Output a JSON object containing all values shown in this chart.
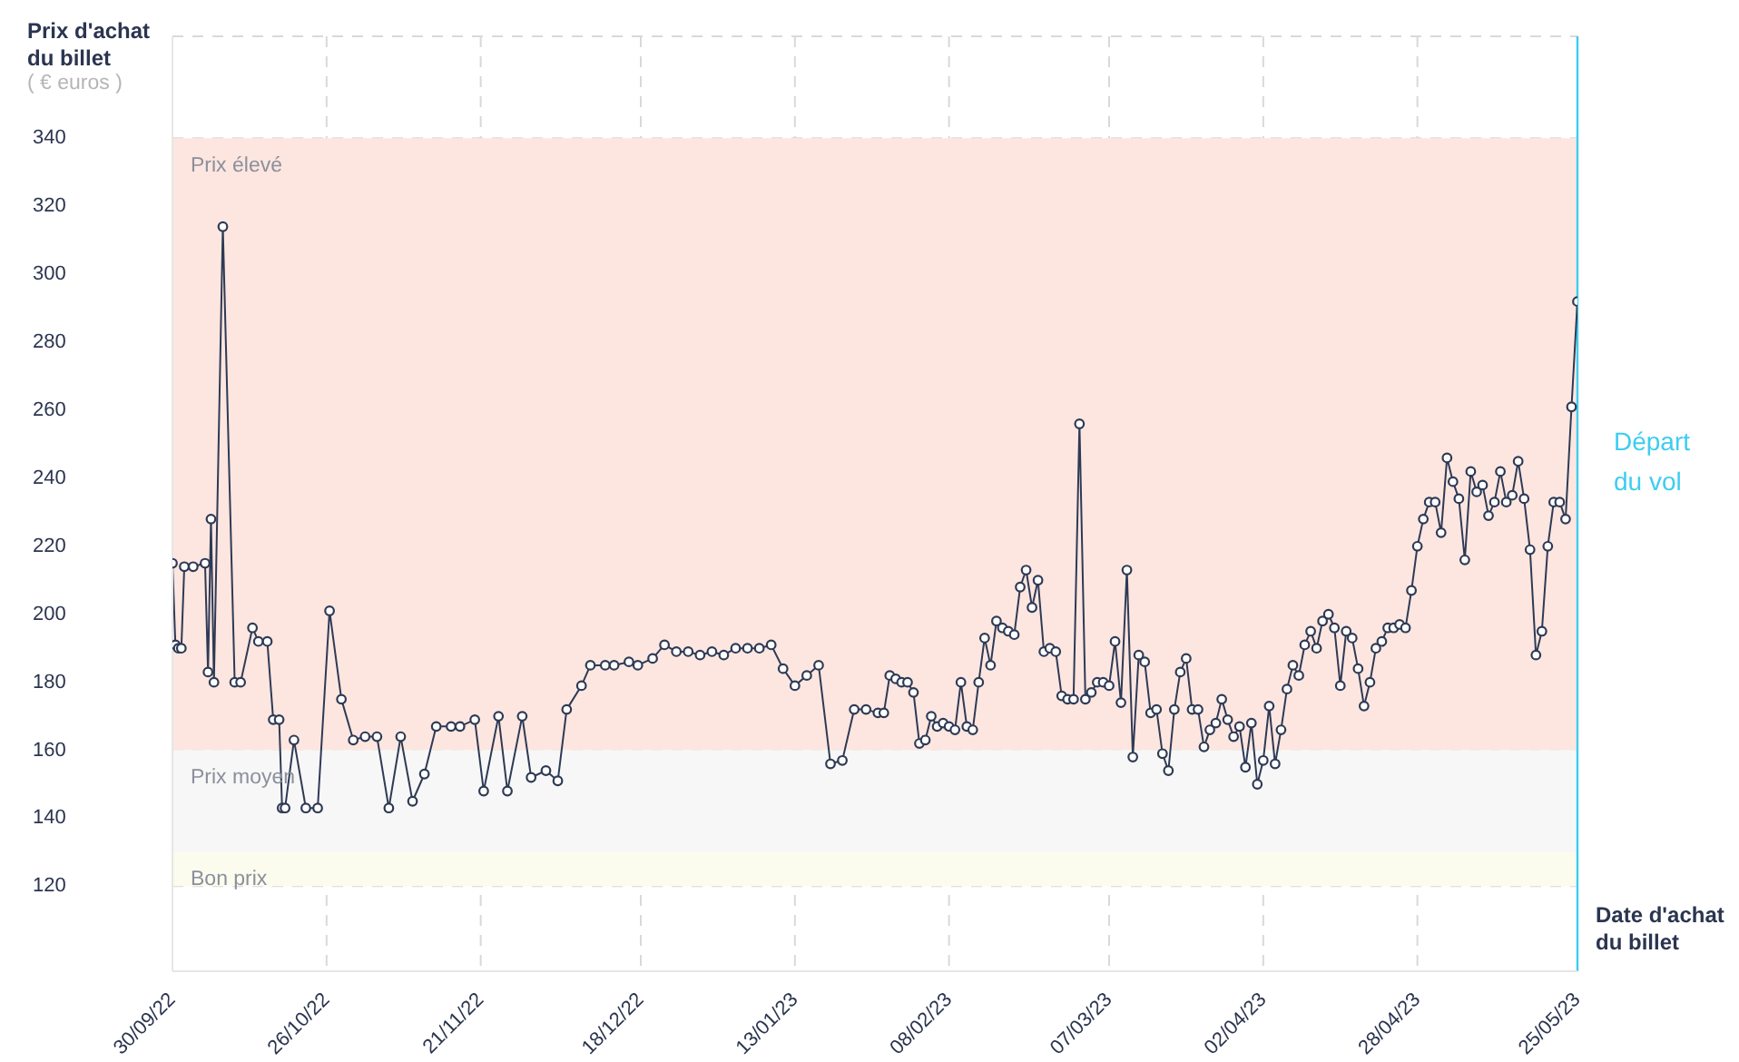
{
  "chart_data": {
    "type": "line",
    "ylabel": "Prix d'achat du billet",
    "xlabel": "Date d'achat du billet",
    "annotations": [
      "( € euros )"
    ],
    "x": [
      "2022-09-30",
      "2022-09-30T12:00",
      "2022-10-01",
      "2022-10-01T12:00",
      "2022-10-02",
      "2022-10-03T12:00",
      "2022-10-05T12:00",
      "2022-10-06",
      "2022-10-06T12:00",
      "2022-10-07",
      "2022-10-08T12:00",
      "2022-10-10T12:00",
      "2022-10-11T12:00",
      "2022-10-13T12:00",
      "2022-10-14T12:00",
      "2022-10-16",
      "2022-10-17",
      "2022-10-18",
      "2022-10-18T12:00",
      "2022-10-19",
      "2022-10-20T12:00",
      "2022-10-22T12:00",
      "2022-10-24T12:00",
      "2022-10-26T12:00",
      "2022-10-28T12:00",
      "2022-10-30T12:00",
      "2022-11-01T12:00",
      "2022-11-03T12:00",
      "2022-11-05T12:00",
      "2022-11-07T12:00",
      "2022-11-09T12:00",
      "2022-11-11T12:00",
      "2022-11-13T12:00",
      "2022-11-16",
      "2022-11-17T12:00",
      "2022-11-20",
      "2022-11-21T12:00",
      "2022-11-24",
      "2022-11-25T12:00",
      "2022-11-28",
      "2022-11-29T12:00",
      "2022-12-02",
      "2022-12-04",
      "2022-12-05T12:00",
      "2022-12-08",
      "2022-12-09T12:00",
      "2022-12-12",
      "2022-12-13T12:00",
      "2022-12-16",
      "2022-12-17T12:00",
      "2022-12-20",
      "2022-12-22",
      "2022-12-24",
      "2022-12-26",
      "2022-12-28",
      "2022-12-30",
      "2023-01-01",
      "2023-01-03",
      "2023-01-05",
      "2023-01-07",
      "2023-01-09",
      "2023-01-11",
      "2023-01-13",
      "2023-01-15",
      "2023-01-17",
      "2023-01-19",
      "2023-01-21",
      "2023-01-23",
      "2023-01-25",
      "2023-01-27",
      "2023-01-28",
      "2023-01-29",
      "2023-01-30",
      "2023-01-31",
      "2023-02-01",
      "2023-02-02",
      "2023-02-03",
      "2023-02-04",
      "2023-02-05",
      "2023-02-06",
      "2023-02-07",
      "2023-02-08",
      "2023-02-09",
      "2023-02-10",
      "2023-02-11",
      "2023-02-12",
      "2023-02-13",
      "2023-02-14",
      "2023-02-15",
      "2023-02-16",
      "2023-02-17",
      "2023-02-18",
      "2023-02-19",
      "2023-02-20",
      "2023-02-21",
      "2023-02-22",
      "2023-02-23",
      "2023-02-24",
      "2023-02-25",
      "2023-02-26",
      "2023-02-27",
      "2023-02-28",
      "2023-03-01",
      "2023-03-02",
      "2023-03-03",
      "2023-03-04",
      "2023-03-05",
      "2023-03-06",
      "2023-03-07",
      "2023-03-08",
      "2023-03-09",
      "2023-03-10",
      "2023-03-11",
      "2023-03-12",
      "2023-03-13",
      "2023-03-14",
      "2023-03-15",
      "2023-03-16",
      "2023-03-17",
      "2023-03-18",
      "2023-03-19",
      "2023-03-20",
      "2023-03-21",
      "2023-03-22",
      "2023-03-23",
      "2023-03-24",
      "2023-03-25",
      "2023-03-26",
      "2023-03-27",
      "2023-03-28",
      "2023-03-29",
      "2023-03-30",
      "2023-03-31",
      "2023-04-01",
      "2023-04-02",
      "2023-04-03",
      "2023-04-04",
      "2023-04-05",
      "2023-04-06",
      "2023-04-07",
      "2023-04-08",
      "2023-04-09",
      "2023-04-10",
      "2023-04-11",
      "2023-04-12",
      "2023-04-13",
      "2023-04-14",
      "2023-04-15",
      "2023-04-16",
      "2023-04-17",
      "2023-04-18",
      "2023-04-19",
      "2023-04-20",
      "2023-04-21",
      "2023-04-22",
      "2023-04-23",
      "2023-04-24",
      "2023-04-25",
      "2023-04-26",
      "2023-04-27",
      "2023-04-28",
      "2023-04-29",
      "2023-04-30",
      "2023-05-01",
      "2023-05-02",
      "2023-05-03",
      "2023-05-04",
      "2023-05-05",
      "2023-05-06",
      "2023-05-07",
      "2023-05-08",
      "2023-05-09",
      "2023-05-10",
      "2023-05-11",
      "2023-05-12",
      "2023-05-13",
      "2023-05-14",
      "2023-05-15",
      "2023-05-16",
      "2023-05-17",
      "2023-05-18",
      "2023-05-19",
      "2023-05-20",
      "2023-05-21",
      "2023-05-22",
      "2023-05-23",
      "2023-05-24",
      "2023-05-25"
    ],
    "series": [
      {
        "color": "#2e3a55",
        "values": [
          215,
          191,
          190,
          190,
          214,
          214,
          215,
          183,
          228,
          180,
          314,
          180,
          180,
          196,
          192,
          192,
          169,
          169,
          143,
          143,
          163,
          143,
          143,
          201,
          175,
          163,
          164,
          164,
          143,
          164,
          145,
          153,
          167,
          167,
          167,
          169,
          148,
          170,
          148,
          170,
          152,
          154,
          151,
          172,
          179,
          185,
          185,
          185,
          186,
          185,
          187,
          191,
          189,
          189,
          188,
          189,
          188,
          190,
          190,
          190,
          191,
          184,
          179,
          182,
          185,
          156,
          157,
          172,
          172,
          171,
          171,
          182,
          181,
          180,
          180,
          177,
          162,
          163,
          170,
          167,
          168,
          167,
          166,
          180,
          167,
          166,
          180,
          193,
          185,
          198,
          196,
          195,
          194,
          208,
          213,
          202,
          210,
          189,
          190,
          189,
          176,
          175,
          175,
          256,
          175,
          177,
          180,
          180,
          179,
          192,
          174,
          213,
          158,
          188,
          186,
          171,
          172,
          159,
          154,
          172,
          183,
          187,
          172,
          172,
          161,
          166,
          168,
          175,
          169,
          164,
          167,
          155,
          168,
          150,
          157,
          173,
          156,
          166,
          178,
          185,
          182,
          191,
          195,
          190,
          198,
          200,
          196,
          179,
          195,
          193,
          184,
          173,
          180,
          190,
          192,
          196,
          196,
          197,
          196,
          207,
          220,
          228,
          233,
          233,
          224,
          246,
          239,
          234,
          216,
          242,
          236,
          238,
          229,
          233,
          242,
          233,
          235,
          245,
          234,
          219,
          188,
          195,
          220,
          233,
          233,
          228,
          261,
          292
        ]
      }
    ],
    "xlim": [
      "2022-09-30",
      "2023-05-25"
    ],
    "xticks": [
      {
        "value": "2022-09-30",
        "label": "30/09/22"
      },
      {
        "value": "2022-10-26",
        "label": "26/10/22"
      },
      {
        "value": "2022-11-21",
        "label": "21/11/22"
      },
      {
        "value": "2022-12-18",
        "label": "18/12/22"
      },
      {
        "value": "2023-01-13",
        "label": "13/01/23"
      },
      {
        "value": "2023-02-08",
        "label": "08/02/23"
      },
      {
        "value": "2023-03-07",
        "label": "07/03/23"
      },
      {
        "value": "2023-04-02",
        "label": "02/04/23"
      },
      {
        "value": "2023-04-28",
        "label": "28/04/23"
      },
      {
        "value": "2023-05-25",
        "label": "25/05/23"
      }
    ],
    "ylim": [
      95,
      370
    ],
    "yticks": [
      120,
      140,
      160,
      180,
      200,
      220,
      240,
      260,
      280,
      300,
      320,
      340
    ],
    "bands": [
      {
        "axis": "y",
        "from": 160,
        "to": 340,
        "label": "Prix élevé",
        "color": "#fde6e0"
      },
      {
        "axis": "y",
        "from": 130,
        "to": 160,
        "label": "Prix moyen",
        "color": "#f7f7f7"
      },
      {
        "axis": "y",
        "from": 120,
        "to": 130,
        "label": "Bon prix",
        "color": "#fbfbee"
      }
    ],
    "ref_lines": [
      {
        "axis": "x",
        "value": "2023-05-25",
        "label": "Départ du vol",
        "color": "#3dcdf0",
        "line_style": "solid"
      }
    ],
    "grid": true,
    "legend": false,
    "marker": "circle",
    "line_style": "solid"
  }
}
